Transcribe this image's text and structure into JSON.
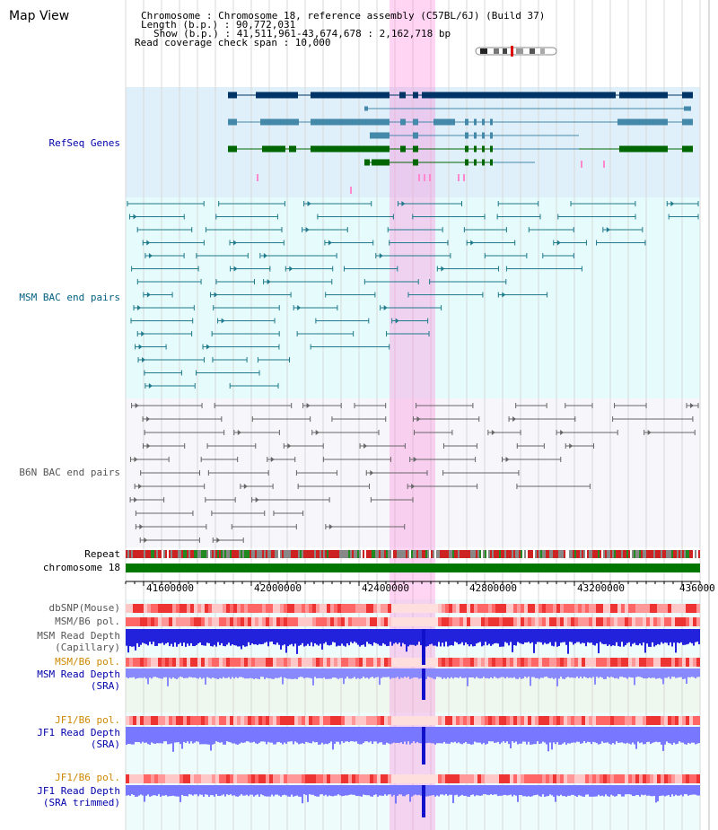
{
  "header": {
    "title": "Map View",
    "info_lines": [
      "Chromosome       : Chromosome 18, reference assembly (C57BL/6J) (Build 37)",
      "Length (b.p.) : 90,772,031",
      "Show (b.p.) : 41,511,961-43,674,678 : 2,162,718 bp",
      "Read coverage check span : 10,000"
    ]
  },
  "tracks": {
    "refseq": "RefSeq Genes",
    "msm_bac": "MSM BAC end pairs",
    "b6n_bac": "B6N BAC end pairs",
    "repeat": "Repeat",
    "chromosome": "chromosome 18",
    "dbsnp": "dbSNP(Mouse)",
    "msm_pol": "MSM/B6 pol.",
    "msm_cap_1": "MSM Read Depth",
    "msm_cap_2": "(Capillary)",
    "msm_pol2": "MSM/B6 pol.",
    "msm_sra_1": "MSM Read Depth",
    "msm_sra_2": "(SRA)",
    "jf1_pol": "JF1/B6 pol.",
    "jf1_sra_1": "JF1 Read Depth",
    "jf1_sra_2": "(SRA)",
    "jf1_pol2": "JF1/B6 pol.",
    "jf1_trim_1": "JF1 Read Depth",
    "jf1_trim_2": "(SRA trimmed)"
  },
  "axis": {
    "ticks": [
      "41600000",
      "42000000",
      "42400000",
      "42800000",
      "43200000",
      "436000"
    ]
  },
  "colors": {
    "refseq_label": "#0000aa",
    "msm_label": "#005f7f",
    "b6n_label": "#555555",
    "pol_label": "#cc8800",
    "highlight": "#ff88dd"
  },
  "icons": [
    "chromosome-ideogram-icon"
  ]
}
